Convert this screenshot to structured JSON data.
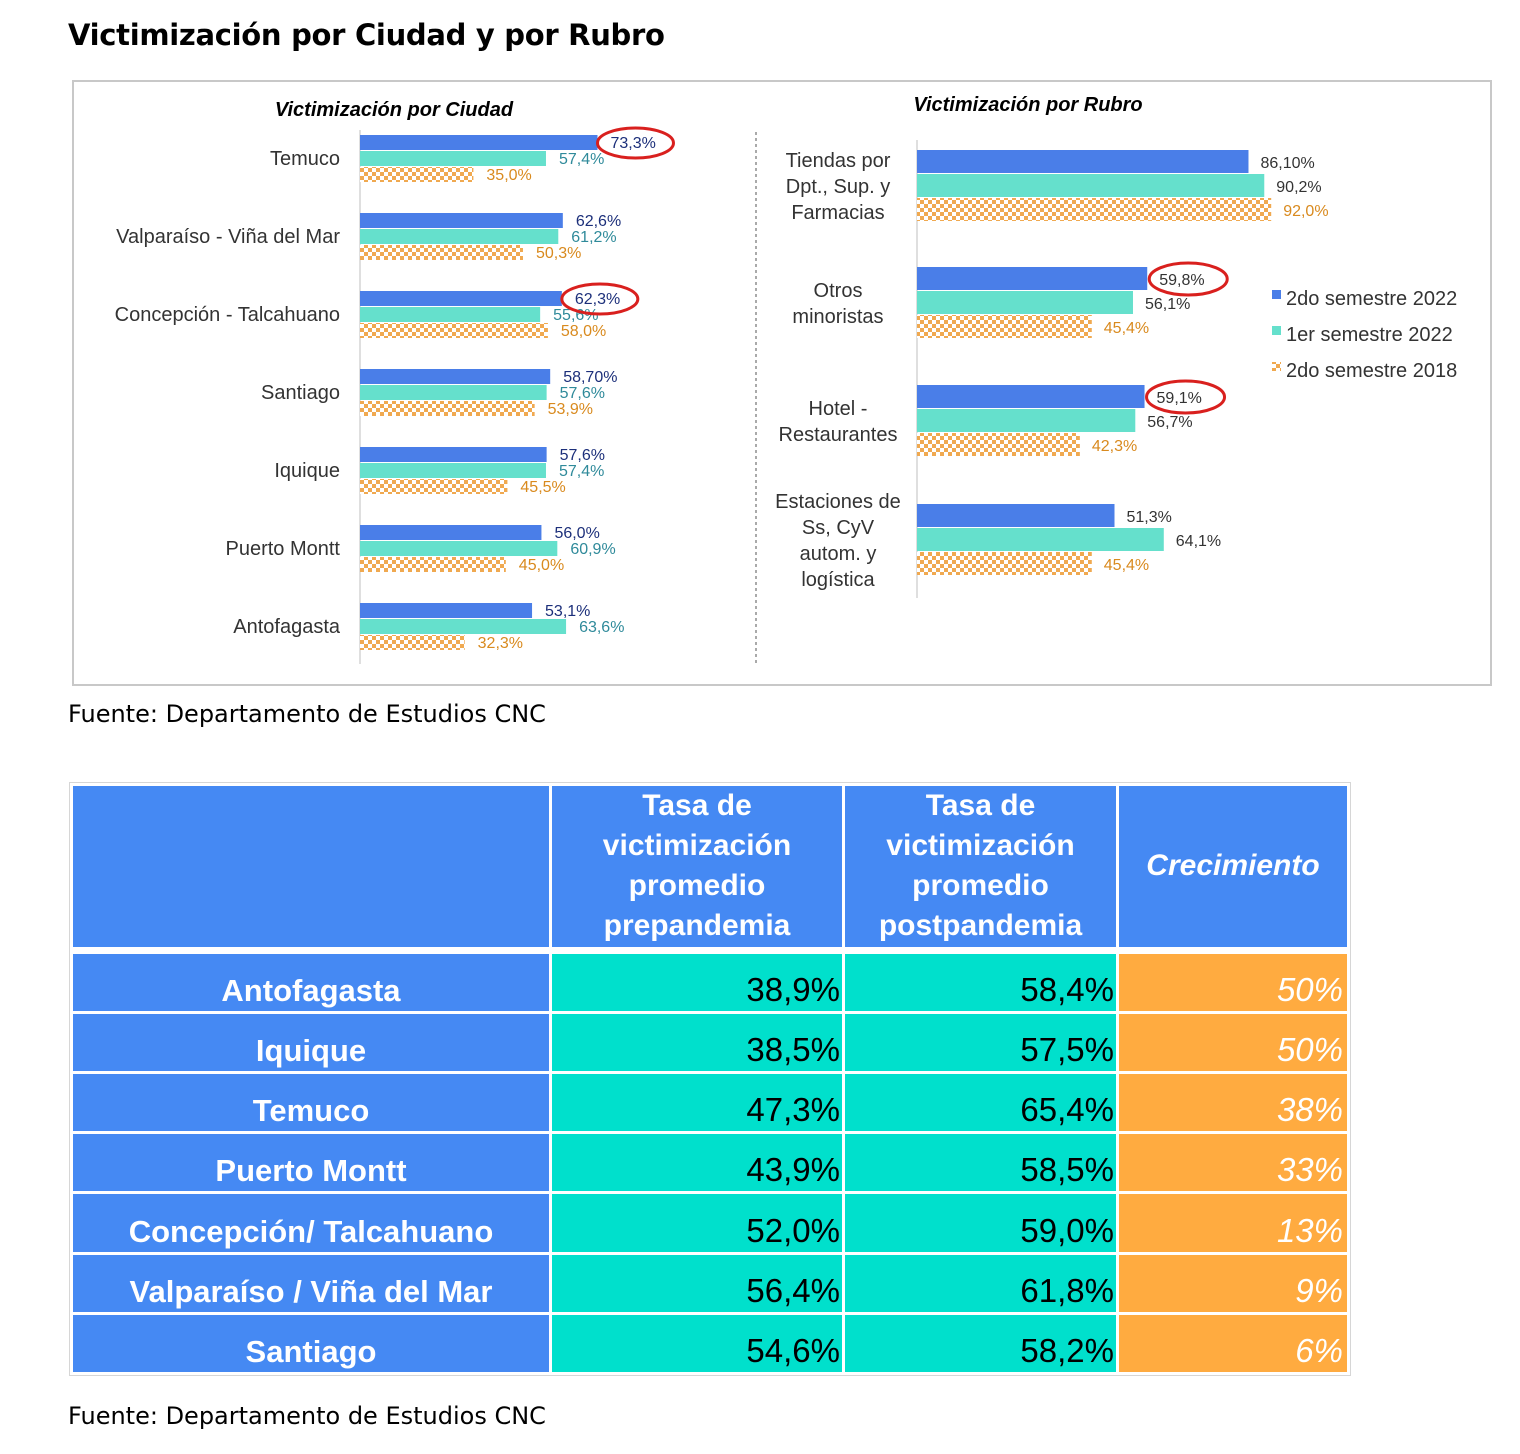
{
  "page": {
    "title": "Victimización por Ciudad y por Rubro",
    "source_1": "Fuente: Departamento de Estudios CNC",
    "source_2": "Fuente: Departamento de Estudios CNC"
  },
  "colors": {
    "series_2022_s2": "#4a7ee8",
    "series_2022_s1": "#65e0cc",
    "series_2018_s2": "#f0a950",
    "highlight_circle": "#d9201e",
    "table_header": "#4589f3",
    "table_values": "#00e0cc",
    "table_growth": "#ffab40"
  },
  "chart_data": [
    {
      "type": "bar",
      "orientation": "horizontal",
      "title": "Victimización por Ciudad",
      "categories": [
        "Temuco",
        "Valparaíso - Viña del Mar",
        "Concepción - Talcahuano",
        "Santiago",
        "Iquique",
        "Puerto Montt",
        "Antofagasta"
      ],
      "series": [
        {
          "name": "2do semestre 2022",
          "values": [
            73.3,
            62.6,
            62.3,
            58.7,
            57.6,
            56.0,
            53.1
          ],
          "labels": [
            "73,3%",
            "62,6%",
            "62,3%",
            "58,70%",
            "57,6%",
            "56,0%",
            "53,1%"
          ]
        },
        {
          "name": "1er semestre 2022",
          "values": [
            57.4,
            61.2,
            55.6,
            57.6,
            57.4,
            60.9,
            63.6
          ],
          "labels": [
            "57,4%",
            "61,2%",
            "55,6%",
            "57,6%",
            "57,4%",
            "60,9%",
            "63,6%"
          ]
        },
        {
          "name": "2do semestre 2018",
          "values": [
            35.0,
            50.3,
            58.0,
            53.9,
            45.5,
            45.0,
            32.3
          ],
          "labels": [
            "35,0%",
            "50,3%",
            "58,0%",
            "53,9%",
            "45,5%",
            "45,0%",
            "32,3%"
          ]
        }
      ],
      "highlighted": [
        "Temuco",
        "Concepción - Talcahuano"
      ]
    },
    {
      "type": "bar",
      "orientation": "horizontal",
      "title": "Victimización por Rubro",
      "categories": [
        [
          "Tiendas por",
          "Dpt., Sup. y",
          "Farmacias"
        ],
        [
          "Otros",
          "minoristas"
        ],
        [
          "Hotel -",
          "Restaurantes"
        ],
        [
          "Estaciones de",
          "Ss, CyV",
          "autom. y",
          "logística"
        ]
      ],
      "series": [
        {
          "name": "2do semestre 2022",
          "values": [
            86.1,
            59.8,
            59.1,
            51.3
          ],
          "labels": [
            "86,10%",
            "59,8%",
            "59,1%",
            "51,3%"
          ]
        },
        {
          "name": "1er semestre 2022",
          "values": [
            90.2,
            56.1,
            56.7,
            64.1
          ],
          "labels": [
            "90,2%",
            "56,1%",
            "56,7%",
            "64,1%"
          ]
        },
        {
          "name": "2do semestre 2018",
          "values": [
            92.0,
            45.4,
            42.3,
            45.4
          ],
          "labels": [
            "92,0%",
            "45,4%",
            "42,3%",
            "45,4%"
          ]
        }
      ],
      "legend": [
        "2do semestre 2022",
        "1er semestre 2022",
        "2do semestre 2018"
      ],
      "legend_position": "right",
      "highlighted": [
        "Otros minoristas",
        "Hotel - Restaurantes"
      ]
    },
    {
      "type": "table",
      "headers": [
        "",
        [
          "Tasa de",
          "victimización",
          "promedio",
          "prepandemia"
        ],
        [
          "Tasa de",
          "victimización",
          "promedio",
          "postpandemia"
        ],
        [
          "Crecimiento"
        ]
      ],
      "rows": [
        {
          "city": "Antofagasta",
          "pre": "38,9%",
          "post": "58,4%",
          "growth": "50%"
        },
        {
          "city": "Iquique",
          "pre": "38,5%",
          "post": "57,5%",
          "growth": "50%"
        },
        {
          "city": "Temuco",
          "pre": "47,3%",
          "post": "65,4%",
          "growth": "38%"
        },
        {
          "city": "Puerto Montt",
          "pre": "43,9%",
          "post": "58,5%",
          "growth": "33%"
        },
        {
          "city": "Concepción/  Talcahuano",
          "pre": "52,0%",
          "post": "59,0%",
          "growth": "13%"
        },
        {
          "city": "Valparaíso  / Viña del Mar",
          "pre": "56,4%",
          "post": "61,8%",
          "growth": "9%"
        },
        {
          "city": "Santiago",
          "pre": "54,6%",
          "post": "58,2%",
          "growth": "6%"
        }
      ]
    }
  ]
}
